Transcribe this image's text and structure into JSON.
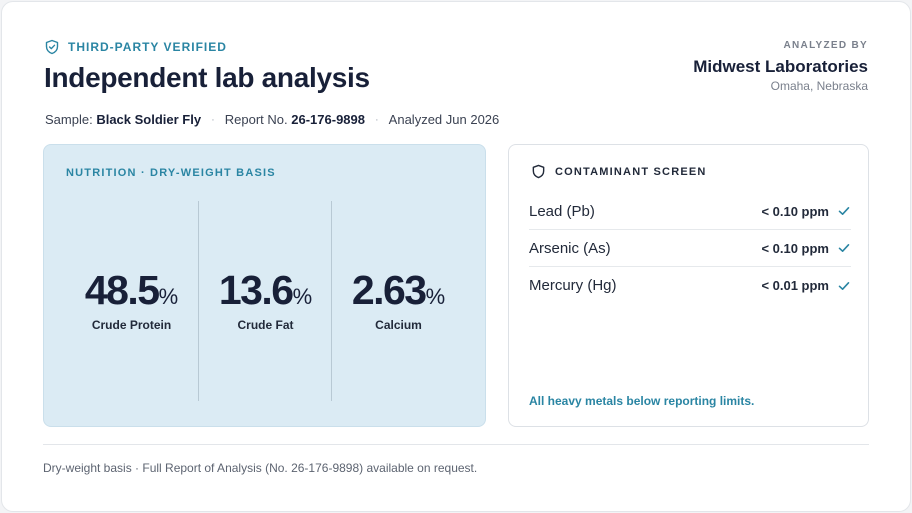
{
  "header": {
    "verified_label": "THIRD-PARTY VERIFIED",
    "title": "Independent lab analysis",
    "sample_label": "Sample:",
    "sample_value": "Black Soldier Fly",
    "report_label": "Report No.",
    "report_value": "26-176-9898",
    "separator": "·",
    "analyzed_date": "Analyzed Jun 2026"
  },
  "lab": {
    "label": "ANALYZED BY",
    "name": "Midwest Laboratories",
    "location": "Omaha, Nebraska"
  },
  "nutrition": {
    "heading": "NUTRITION · DRY-WEIGHT BASIS",
    "metrics": [
      {
        "value": "48.5",
        "unit": "%",
        "label": "Crude Protein"
      },
      {
        "value": "13.6",
        "unit": "%",
        "label": "Crude Fat"
      },
      {
        "value": "2.63",
        "unit": "%",
        "label": "Calcium"
      }
    ]
  },
  "contaminants": {
    "heading": "CONTAMINANT SCREEN",
    "rows": [
      {
        "name": "Lead (Pb)",
        "amount": "< 0.10 ppm"
      },
      {
        "name": "Arsenic (As)",
        "amount": "< 0.10 ppm"
      },
      {
        "name": "Mercury (Hg)",
        "amount": "< 0.01 ppm"
      }
    ],
    "note": "All heavy metals below reporting limits."
  },
  "footer": {
    "text": "Dry-weight basis · Full Report of Analysis (No. 26-176-9898) available on request."
  },
  "icons": {
    "verified": "shield-check-icon",
    "contaminant": "shield-icon",
    "pass": "check-icon"
  },
  "colors": {
    "accent": "#2a85a3",
    "panel": "#dbebf4",
    "text": "#182038"
  }
}
